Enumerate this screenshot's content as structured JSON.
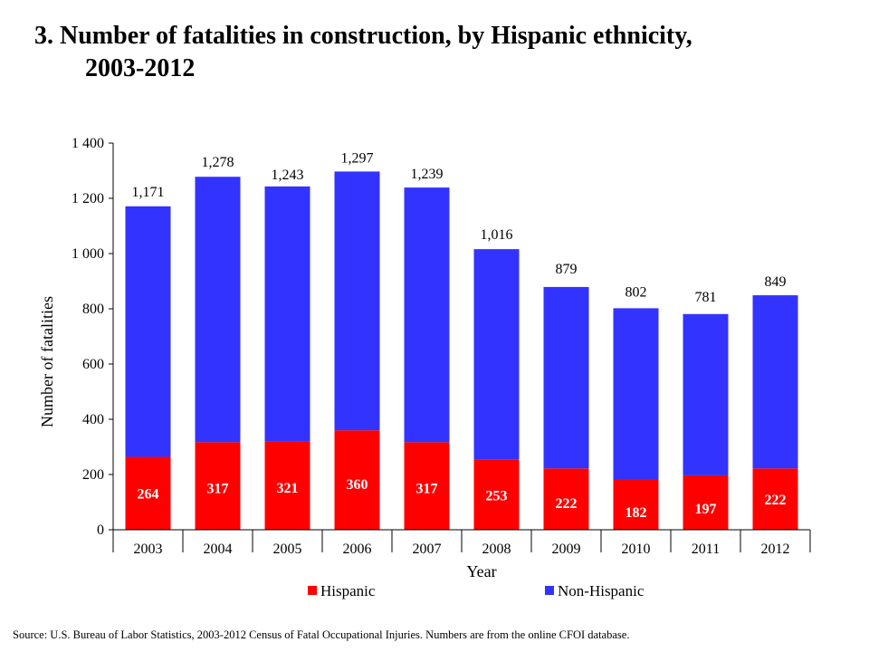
{
  "title_line1": "3. Number of fatalities in construction, by Hispanic ethnicity,",
  "title_line2": "2003-2012",
  "source": "Source: U.S. Bureau of Labor Statistics, 2003-2012 Census of Fatal Occupational Injuries. Numbers are from the online CFOI database.",
  "chart_data": {
    "type": "bar",
    "stacked": true,
    "title": "3. Number of fatalities in construction, by Hispanic ethnicity, 2003-2012",
    "xlabel": "Year",
    "ylabel": "Number of fatalities",
    "ylim": [
      0,
      1400
    ],
    "yticks": [
      0,
      200,
      400,
      600,
      800,
      1000,
      1200,
      1400
    ],
    "ytick_labels": [
      "0",
      "200",
      "400",
      "600",
      "800",
      "1 000",
      "1 200",
      "1 400"
    ],
    "categories": [
      "2003",
      "2004",
      "2005",
      "2006",
      "2007",
      "2008",
      "2009",
      "2010",
      "2011",
      "2012"
    ],
    "totals": [
      1171,
      1278,
      1243,
      1297,
      1239,
      1016,
      879,
      802,
      781,
      849
    ],
    "total_labels": [
      "1,171",
      "1,278",
      "1,243",
      "1,297",
      "1,239",
      "1,016",
      "879",
      "802",
      "781",
      "849"
    ],
    "series": [
      {
        "name": "Hispanic",
        "color": "#ff0000",
        "values": [
          264,
          317,
          321,
          360,
          317,
          253,
          222,
          182,
          197,
          222
        ]
      },
      {
        "name": "Non-Hispanic",
        "color": "#3333ff",
        "values": [
          907,
          961,
          922,
          937,
          922,
          763,
          657,
          620,
          584,
          627
        ]
      }
    ],
    "grid": false,
    "legend_position": "bottom"
  }
}
